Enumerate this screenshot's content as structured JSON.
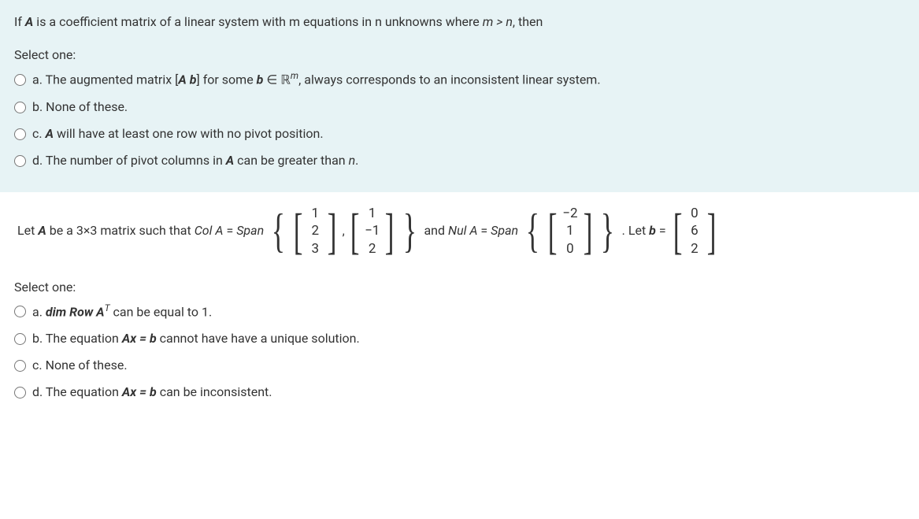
{
  "q1": {
    "background": "#e7f3f5",
    "prompt_pre": "If ",
    "prompt_A": "A",
    "prompt_mid": " is a coefficient matrix of a linear system with m equations in n unknowns where ",
    "prompt_cond": "m > n",
    "prompt_post": ", then",
    "select_one": "Select one:",
    "options": [
      {
        "letter": "a.",
        "pre": "The augmented matrix [",
        "Ab": "A  b",
        "mid": "] for some ",
        "b": "b ",
        "elem": "∈ ℝ",
        "sup": "m",
        "post": ",  always corresponds to an inconsistent linear system."
      },
      {
        "letter": "b.",
        "text": "None of these."
      },
      {
        "letter": "c.",
        "A": "A ",
        "post": "will have at least one row with no pivot position."
      },
      {
        "letter": "d.",
        "pre": "The number of pivot columns in ",
        "A": "A ",
        "mid": "can be greater than ",
        "n": "n",
        "post": "."
      }
    ]
  },
  "q2": {
    "background": "#ffffff",
    "pre1": "Let ",
    "A": "A",
    "mid1": " be a 3×3 matrix such that ",
    "colA": "Col A",
    "eq": " =  ",
    "span": "Span",
    "v1": [
      "1",
      "2",
      "3"
    ],
    "v2": [
      "1",
      "−1",
      "2"
    ],
    "and": " and ",
    "nulA": "Nul A",
    "v3": [
      "−2",
      "1",
      "0"
    ],
    "letb": ". Let ",
    "b": "b",
    "eqb": " = ",
    "bvec": [
      "0",
      "6",
      "2"
    ],
    "select_one": "Select one:",
    "options": [
      {
        "letter": "a.",
        "pre": "",
        "dim": "dim",
        "row": " Row A",
        "sup": "T",
        "post": " can be equal to 1."
      },
      {
        "letter": "b.",
        "pre": "The equation ",
        "axb": "Ax = b",
        "post": " cannot have have a unique solution."
      },
      {
        "letter": "c.",
        "text": "None of these."
      },
      {
        "letter": "d.",
        "pre": "The equation ",
        "axb": "Ax = b",
        "post": " can be inconsistent."
      }
    ]
  }
}
